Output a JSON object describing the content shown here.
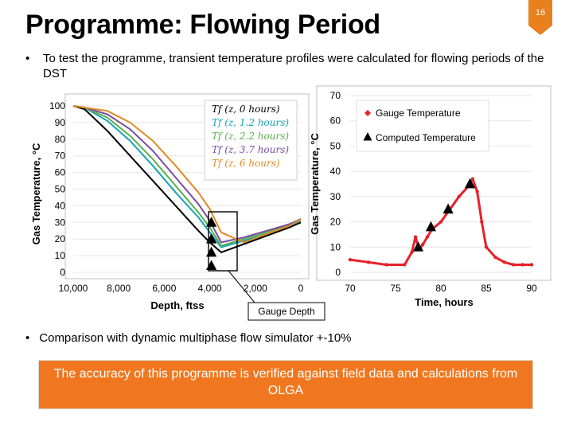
{
  "slide": {
    "title": "Programme: Flowing Period",
    "page_number": "16",
    "bullet1": "To test the programme, transient temperature profiles were calculated for flowing periods of the DST",
    "bullet2": "Comparison with dynamic multiphase flow simulator +-10%",
    "verdict": "The accuracy of this programme is verified against field data and calculations from OLGA",
    "callout": "Gauge Depth",
    "colors": {
      "accent": "#f0771f",
      "badge": "#e8801e"
    }
  },
  "chart_data": [
    {
      "type": "line",
      "xlabel": "Depth, ftss",
      "ylabel": "Gas Temperature, °C",
      "xlim": [
        10000,
        0
      ],
      "ylim": [
        0,
        100
      ],
      "x_ticks": [
        "10,000",
        "8,000",
        "6,000",
        "4,000",
        "2,000",
        "0"
      ],
      "y_ticks": [
        "100",
        "90",
        "80",
        "70",
        "60",
        "50",
        "40",
        "30",
        "20",
        "10",
        "0"
      ],
      "legend_position": "top-right",
      "series": [
        {
          "name": "T_f (z, 0 hours)",
          "color": "#000000",
          "x": [
            10000,
            9500,
            8500,
            7500,
            6500,
            5500,
            4500,
            4000,
            3500,
            2500,
            1500,
            500,
            0
          ],
          "y": [
            100,
            98,
            85,
            70,
            55,
            40,
            25,
            18,
            12,
            17,
            22,
            27,
            30
          ]
        },
        {
          "name": "T_f (z, 1.2 hours)",
          "color": "#17a3b5",
          "x": [
            10000,
            9500,
            8500,
            7500,
            6500,
            5500,
            4500,
            4000,
            3500,
            2500,
            1500,
            500,
            0
          ],
          "y": [
            100,
            99,
            91,
            79,
            64,
            48,
            33,
            24,
            15,
            19,
            23,
            28,
            31
          ]
        },
        {
          "name": "T_f (z, 2.2 hours)",
          "color": "#5cae4e",
          "x": [
            10000,
            9500,
            8500,
            7500,
            6500,
            5500,
            4500,
            4000,
            3500,
            2500,
            1500,
            500,
            0
          ],
          "y": [
            100,
            99,
            93,
            82,
            68,
            52,
            36,
            27,
            16,
            20,
            24,
            29,
            31
          ]
        },
        {
          "name": "T_f (z, 3.7 hours)",
          "color": "#7b4ca0",
          "x": [
            10000,
            9500,
            8500,
            7500,
            6500,
            5500,
            4500,
            4000,
            3500,
            2500,
            1500,
            500,
            0
          ],
          "y": [
            100,
            99,
            95,
            86,
            73,
            57,
            41,
            31,
            18,
            21,
            25,
            29,
            32
          ]
        },
        {
          "name": "T_f (z, 6 hours)",
          "color": "#e08a24",
          "x": [
            10000,
            9500,
            8500,
            7500,
            6500,
            5500,
            4500,
            4000,
            3500,
            2500,
            1500,
            500,
            0
          ],
          "y": [
            100,
            99,
            97,
            90,
            79,
            64,
            48,
            38,
            24,
            18,
            23,
            28,
            32
          ]
        }
      ],
      "markers": {
        "name": "Computed Temperature",
        "x": [
          4000,
          4000,
          4000,
          4000
        ],
        "y": [
          30,
          20,
          12,
          4
        ]
      }
    },
    {
      "type": "line",
      "xlabel": "Time, hours",
      "ylabel": "Gas Temperature, °C",
      "xlim": [
        70,
        90
      ],
      "ylim": [
        0,
        70
      ],
      "x_ticks": [
        "70",
        "75",
        "80",
        "85",
        "90"
      ],
      "y_ticks": [
        "70",
        "60",
        "50",
        "40",
        "30",
        "20",
        "10",
        "0"
      ],
      "legend_position": "top-right",
      "series": [
        {
          "name": "Gauge Temperature",
          "color": "#e8202a",
          "x": [
            70,
            72,
            74,
            76,
            76.8,
            77.2,
            77.6,
            78.0,
            78.5,
            79,
            80,
            81,
            82,
            83,
            83.5,
            84,
            84.5,
            85,
            86,
            87,
            88,
            89,
            90
          ],
          "y": [
            5,
            4,
            3,
            3,
            8,
            14,
            9,
            11,
            14,
            17,
            20,
            25,
            30,
            34,
            37,
            32,
            20,
            10,
            6,
            4,
            3,
            3,
            3
          ]
        }
      ],
      "markers": {
        "name": "Computed Temperature",
        "x": [
          77.5,
          78.9,
          80.8,
          83.2
        ],
        "y": [
          10,
          18,
          25,
          35
        ]
      }
    }
  ]
}
